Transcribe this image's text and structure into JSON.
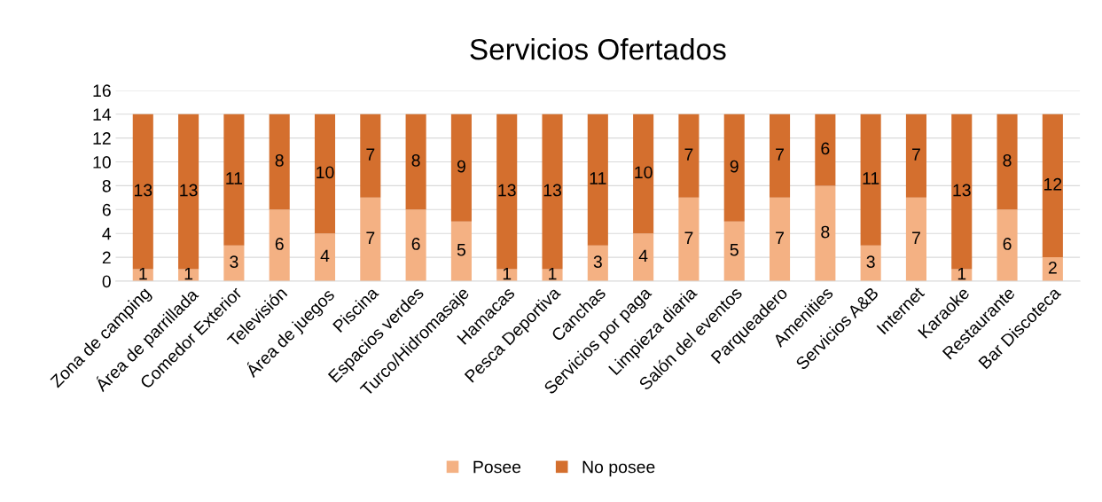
{
  "chart_data": {
    "type": "bar",
    "title": "Servicios Ofertados",
    "stacked": true,
    "categories": [
      "Zona de camping",
      "Área de parrillada",
      "Comedor Exterior",
      "Televisión",
      "Área de juegos",
      "Piscina",
      "Espacios verdes",
      "Turco/Hidromasaje",
      "Hamacas",
      "Pesca Deportiva",
      "Canchas",
      "Servicios por paga",
      "Limpieza diaria",
      "Salón del eventos",
      "Parqueadero",
      "Amenities",
      "Servicios A&B",
      "Internet",
      "Karaoke",
      "Restaurante",
      "Bar Discoteca"
    ],
    "series": [
      {
        "name": "Posee",
        "color": "#f4b183",
        "values": [
          1,
          1,
          3,
          6,
          4,
          7,
          6,
          5,
          1,
          1,
          3,
          4,
          7,
          5,
          7,
          8,
          3,
          7,
          1,
          6,
          2
        ]
      },
      {
        "name": "No posee",
        "color": "#d46f2e",
        "values": [
          13,
          13,
          11,
          8,
          10,
          7,
          8,
          9,
          13,
          13,
          11,
          10,
          7,
          9,
          7,
          6,
          11,
          7,
          13,
          8,
          12
        ]
      }
    ],
    "ylim": [
      0,
      16
    ],
    "yticks": [
      0,
      2,
      4,
      6,
      8,
      10,
      12,
      14,
      16
    ],
    "grid": "y",
    "legend": "bottom",
    "data_labels": true
  }
}
